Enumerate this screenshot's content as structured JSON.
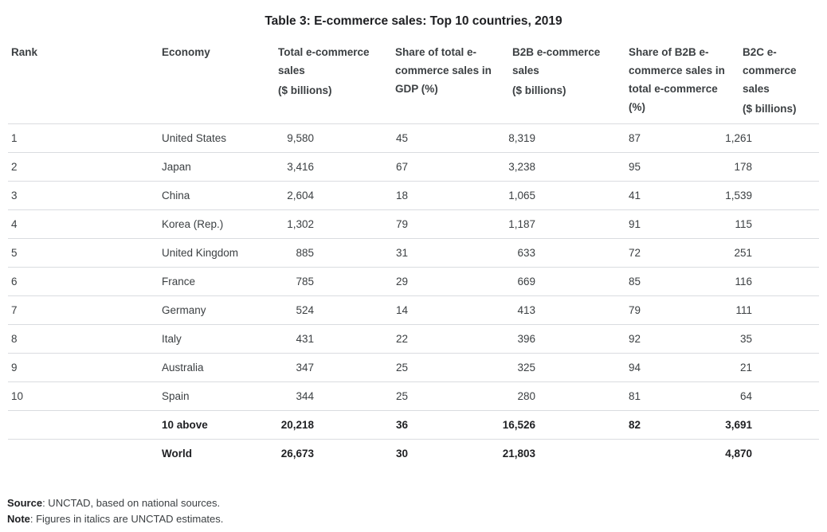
{
  "title": "Table 3: E-commerce sales: Top 10 countries, 2019",
  "table": {
    "columns": [
      {
        "label": "Rank"
      },
      {
        "label": "Economy"
      },
      {
        "label": "Total e-commerce sales",
        "unit": "($ billions)"
      },
      {
        "label": "Share of total e-commerce sales in GDP (%)"
      },
      {
        "label": "B2B e-commerce sales",
        "unit": "($ billions)"
      },
      {
        "label": "Share of B2B e-commerce sales in total e-commerce (%)"
      },
      {
        "label": "B2C e-commerce sales",
        "unit": "($ billions)"
      }
    ],
    "rows": [
      {
        "rank": "1",
        "economy": "United States",
        "total": "9,580",
        "share_gdp": "45",
        "b2b": "8,319",
        "share_b2b": "87",
        "b2c": "1,261",
        "bold": false
      },
      {
        "rank": "2",
        "economy": "Japan",
        "total": "3,416",
        "share_gdp": "67",
        "b2b": "3,238",
        "share_b2b": "95",
        "b2c": "178",
        "bold": false
      },
      {
        "rank": "3",
        "economy": "China",
        "total": "2,604",
        "share_gdp": "18",
        "b2b": "1,065",
        "share_b2b": "41",
        "b2c": "1,539",
        "bold": false
      },
      {
        "rank": "4",
        "economy": "Korea (Rep.)",
        "total": "1,302",
        "share_gdp": "79",
        "b2b": "1,187",
        "share_b2b": "91",
        "b2c": "115",
        "bold": false
      },
      {
        "rank": "5",
        "economy": "United Kingdom",
        "total": "885",
        "share_gdp": "31",
        "b2b": "633",
        "share_b2b": "72",
        "b2c": "251",
        "bold": false
      },
      {
        "rank": "6",
        "economy": "France",
        "total": "785",
        "share_gdp": "29",
        "b2b": "669",
        "share_b2b": "85",
        "b2c": "116",
        "bold": false
      },
      {
        "rank": "7",
        "economy": "Germany",
        "total": "524",
        "share_gdp": "14",
        "b2b": "413",
        "share_b2b": "79",
        "b2c": "111",
        "bold": false
      },
      {
        "rank": "8",
        "economy": "Italy",
        "total": "431",
        "share_gdp": "22",
        "b2b": "396",
        "share_b2b": "92",
        "b2c": "35",
        "bold": false
      },
      {
        "rank": "9",
        "economy": "Australia",
        "total": "347",
        "share_gdp": "25",
        "b2b": "325",
        "share_b2b": "94",
        "b2c": "21",
        "bold": false
      },
      {
        "rank": "10",
        "economy": "Spain",
        "total": "344",
        "share_gdp": "25",
        "b2b": "280",
        "share_b2b": "81",
        "b2c": "64",
        "bold": false
      },
      {
        "rank": "",
        "economy": "10 above",
        "total": "20,218",
        "share_gdp": "36",
        "b2b": "16,526",
        "share_b2b": "82",
        "b2c": "3,691",
        "bold": true
      },
      {
        "rank": "",
        "economy": "World",
        "total": "26,673",
        "share_gdp": "30",
        "b2b": "21,803",
        "share_b2b": "",
        "b2c": "4,870",
        "bold": true
      }
    ]
  },
  "footnotes": [
    {
      "label": "Source",
      "text": ": UNCTAD, based on national sources."
    },
    {
      "label": "Note",
      "text": ": Figures in italics are UNCTAD estimates."
    }
  ],
  "colors": {
    "text": "#3c4043",
    "title": "#202124",
    "rule": "#dadce0"
  }
}
